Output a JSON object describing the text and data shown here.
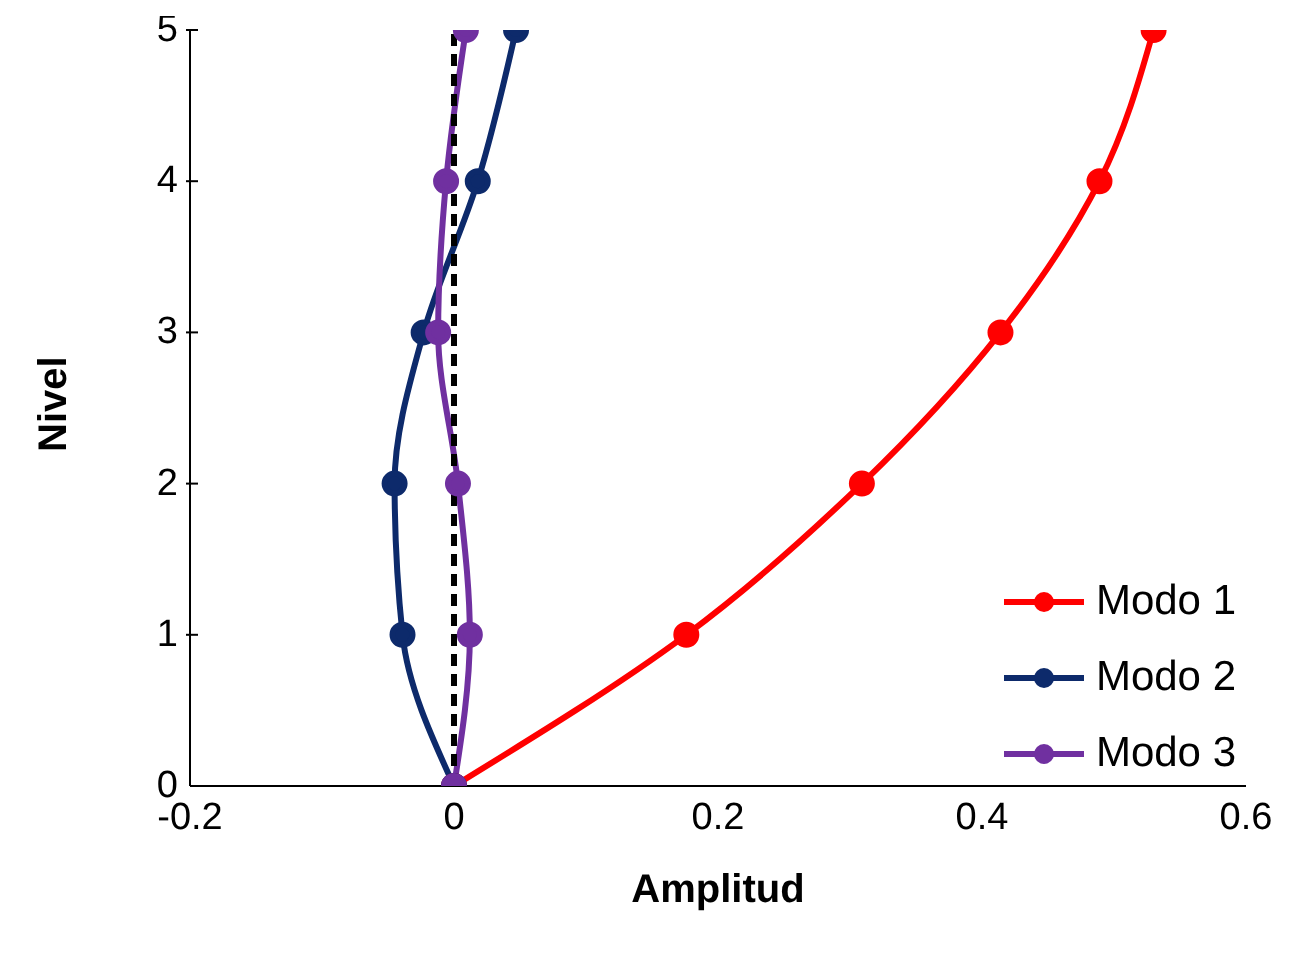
{
  "chart_data": {
    "type": "line",
    "xlabel": "Amplitud",
    "ylabel": "Nivel",
    "x": [
      0,
      1,
      2,
      3,
      4,
      5
    ],
    "series": [
      {
        "name": "Modo 1",
        "color": "#ff0000",
        "values": [
          0,
          0.176,
          0.309,
          0.414,
          0.489,
          0.53
        ]
      },
      {
        "name": "Modo 2",
        "color": "#0d2a6b",
        "values": [
          0,
          -0.039,
          -0.045,
          -0.023,
          0.018,
          0.047
        ]
      },
      {
        "name": "Modo 3",
        "color": "#7030a0",
        "values": [
          0,
          0.012,
          0.003,
          -0.012,
          -0.006,
          0.009
        ]
      }
    ],
    "orientation": "horizontal",
    "xlim": [
      -0.2,
      0.6
    ],
    "xticks": [
      -0.2,
      0,
      0.2,
      0.4,
      0.6
    ],
    "ylim": [
      0,
      5
    ],
    "yticks": [
      0,
      1,
      2,
      3,
      4,
      5
    ],
    "ref_lines": [
      {
        "axis": "x",
        "value": 0,
        "color": "#000000",
        "line_style": "dashed"
      }
    ],
    "marker": "circle",
    "line_style": "solid",
    "grid": false,
    "legend": "bottom right"
  }
}
